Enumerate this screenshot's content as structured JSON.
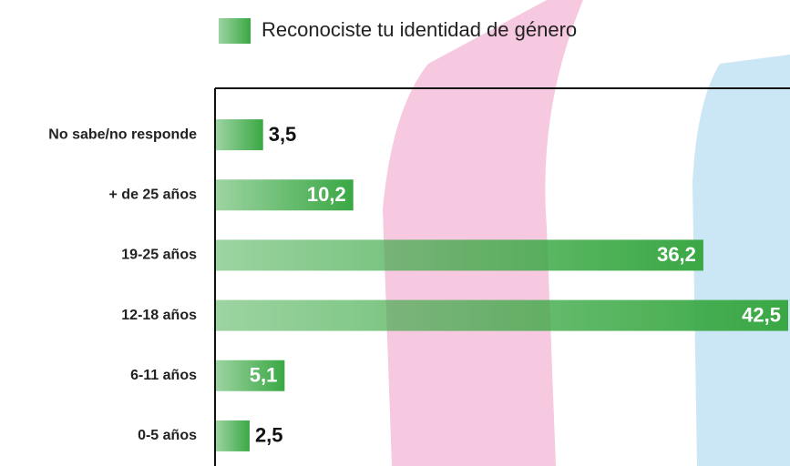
{
  "chart_data": {
    "type": "hbar",
    "legend": "Reconociste tu identidad de género",
    "categories": [
      "No sabe/no responde",
      "+ de 25 años",
      "19-25 años",
      "12-18 años",
      "6-11 años",
      "0-5 años"
    ],
    "values": [
      3.5,
      10.2,
      36.2,
      42.5,
      5.1,
      2.5
    ],
    "value_labels": [
      "3,5",
      "10,2",
      "36,2",
      "42,5",
      "5,1",
      "2,5"
    ],
    "color": "#3aa844",
    "xlim": [
      0,
      42.5
    ]
  }
}
